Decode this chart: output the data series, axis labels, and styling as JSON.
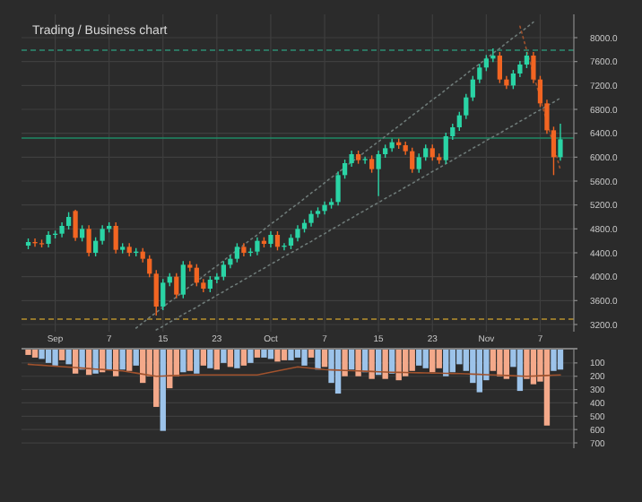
{
  "chart_data": [
    {
      "type": "candlestick",
      "title": "Trading / Business chart",
      "categories": [
        null,
        null,
        null,
        null,
        "Sep",
        null,
        null,
        null,
        null,
        null,
        null,
        null,
        "7",
        null,
        null,
        null,
        null,
        null,
        null,
        null,
        "15",
        null,
        null,
        null,
        null,
        null,
        null,
        null,
        "23",
        null,
        null,
        null,
        null,
        null,
        null,
        null,
        "Oct",
        null,
        null,
        null,
        null,
        null,
        null,
        null,
        "7",
        null,
        null,
        null,
        null,
        null,
        null,
        null,
        "15",
        null,
        null,
        null,
        null,
        null,
        null,
        null,
        "23",
        null,
        null,
        null,
        null,
        null,
        null,
        null,
        "Nov",
        null,
        null,
        null,
        null,
        null,
        null,
        null,
        "7",
        null,
        null,
        null
      ],
      "ohlc": [
        [
          4520,
          4640,
          4460,
          4580
        ],
        [
          4580,
          4640,
          4500,
          4560
        ],
        [
          4560,
          4620,
          4490,
          4550
        ],
        [
          4550,
          4760,
          4490,
          4700
        ],
        [
          4700,
          4770,
          4640,
          4720
        ],
        [
          4720,
          4910,
          4660,
          4850
        ],
        [
          4850,
          5080,
          4790,
          5000
        ],
        [
          5100,
          5120,
          4600,
          4650
        ],
        [
          4650,
          4860,
          4590,
          4800
        ],
        [
          4800,
          4860,
          4340,
          4400
        ],
        [
          4400,
          4660,
          4340,
          4600
        ],
        [
          4600,
          4860,
          4540,
          4800
        ],
        [
          4800,
          4910,
          4740,
          4850
        ],
        [
          4850,
          4910,
          4390,
          4450
        ],
        [
          4450,
          4560,
          4390,
          4500
        ],
        [
          4500,
          4560,
          4340,
          4400
        ],
        [
          4400,
          4480,
          4340,
          4420
        ],
        [
          4420,
          4480,
          4240,
          4300
        ],
        [
          4300,
          4360,
          3990,
          4050
        ],
        [
          4050,
          4110,
          3350,
          3500
        ],
        [
          3500,
          3960,
          3440,
          3900
        ],
        [
          3900,
          4060,
          3840,
          4000
        ],
        [
          4000,
          4060,
          3640,
          3700
        ],
        [
          3700,
          4260,
          3640,
          4200
        ],
        [
          4200,
          4260,
          4090,
          4150
        ],
        [
          4150,
          4210,
          3840,
          3900
        ],
        [
          3900,
          3960,
          3740,
          3800
        ],
        [
          3800,
          4010,
          3740,
          3950
        ],
        [
          3950,
          4060,
          3890,
          4000
        ],
        [
          4000,
          4260,
          3940,
          4200
        ],
        [
          4200,
          4360,
          4140,
          4300
        ],
        [
          4300,
          4560,
          4240,
          4500
        ],
        [
          4500,
          4560,
          4340,
          4400
        ],
        [
          4400,
          4480,
          4340,
          4420
        ],
        [
          4420,
          4660,
          4360,
          4600
        ],
        [
          4600,
          4660,
          4490,
          4550
        ],
        [
          4550,
          4760,
          4490,
          4700
        ],
        [
          4700,
          4760,
          4440,
          4500
        ],
        [
          4500,
          4560,
          4440,
          4520
        ],
        [
          4520,
          4710,
          4460,
          4650
        ],
        [
          4650,
          4860,
          4590,
          4800
        ],
        [
          4800,
          4960,
          4740,
          4900
        ],
        [
          4900,
          5110,
          4840,
          5050
        ],
        [
          5050,
          5160,
          4990,
          5100
        ],
        [
          5100,
          5260,
          5040,
          5200
        ],
        [
          5200,
          5310,
          5140,
          5250
        ],
        [
          5250,
          5760,
          5190,
          5700
        ],
        [
          5700,
          5960,
          5640,
          5900
        ],
        [
          5900,
          6110,
          5840,
          6050
        ],
        [
          6050,
          6110,
          5890,
          5950
        ],
        [
          5950,
          6010,
          5890,
          5970
        ],
        [
          5970,
          6030,
          5740,
          5800
        ],
        [
          5800,
          6110,
          5350,
          6050
        ],
        [
          6050,
          6210,
          5990,
          6150
        ],
        [
          6150,
          6310,
          6090,
          6250
        ],
        [
          6250,
          6310,
          6140,
          6200
        ],
        [
          6200,
          6260,
          6040,
          6100
        ],
        [
          6100,
          6160,
          5740,
          5800
        ],
        [
          5800,
          6060,
          5740,
          6000
        ],
        [
          6000,
          6210,
          5940,
          6150
        ],
        [
          6150,
          6210,
          5940,
          6000
        ],
        [
          6000,
          6060,
          5890,
          5950
        ],
        [
          5950,
          6410,
          5890,
          6350
        ],
        [
          6350,
          6560,
          6290,
          6500
        ],
        [
          6500,
          6760,
          6440,
          6700
        ],
        [
          6700,
          7060,
          6640,
          7000
        ],
        [
          7000,
          7360,
          6940,
          7300
        ],
        [
          7300,
          7560,
          7240,
          7500
        ],
        [
          7500,
          7710,
          7440,
          7650
        ],
        [
          7650,
          7820,
          7590,
          7700
        ],
        [
          7700,
          7760,
          7240,
          7300
        ],
        [
          7300,
          7360,
          7140,
          7200
        ],
        [
          7200,
          7460,
          7140,
          7400
        ],
        [
          7400,
          7610,
          7340,
          7550
        ],
        [
          7550,
          7760,
          7490,
          7700
        ],
        [
          7700,
          7760,
          7240,
          7300
        ],
        [
          7300,
          7360,
          6840,
          6900
        ],
        [
          6900,
          6960,
          6390,
          6450
        ],
        [
          6450,
          6510,
          5700,
          6000
        ],
        [
          6000,
          6560,
          5940,
          6300
        ]
      ],
      "series": [
        {
          "type": "line",
          "color": "#6e7a78",
          "line_style": "dotted",
          "values": [
            null,
            null,
            null,
            null,
            null,
            null,
            null,
            null,
            null,
            null,
            null,
            null,
            null,
            null,
            null,
            null,
            3140,
            3230,
            3320,
            3400,
            3490,
            3580,
            3660,
            3750,
            3840,
            3920,
            4010,
            4100,
            4180,
            4270,
            4360,
            4440,
            4530,
            4620,
            4700,
            4790,
            4880,
            4960,
            5050,
            5140,
            5220,
            5310,
            5400,
            5480,
            5570,
            5660,
            5740,
            5830,
            5920,
            6000,
            6090,
            6180,
            6260,
            6350,
            6440,
            6520,
            6610,
            6700,
            6780,
            6870,
            6960,
            7040,
            7130,
            7220,
            7300,
            7390,
            7480,
            7560,
            7650,
            7740,
            7820,
            7910,
            8000,
            8080,
            8170,
            8260,
            null,
            null,
            null,
            null
          ]
        },
        {
          "type": "line",
          "color": "#6e7a78",
          "line_style": "dotted",
          "values": [
            null,
            null,
            null,
            null,
            null,
            null,
            null,
            null,
            null,
            null,
            null,
            null,
            null,
            null,
            null,
            null,
            null,
            null,
            null,
            3110,
            3170,
            3240,
            3300,
            3370,
            3430,
            3490,
            3560,
            3620,
            3690,
            3750,
            3820,
            3880,
            3950,
            4010,
            4080,
            4140,
            4210,
            4270,
            4340,
            4400,
            4460,
            4530,
            4590,
            4660,
            4720,
            4790,
            4850,
            4920,
            4980,
            5050,
            5110,
            5180,
            5240,
            5310,
            5370,
            5430,
            5500,
            5560,
            5630,
            5690,
            5760,
            5820,
            5890,
            5950,
            6020,
            6080,
            6150,
            6210,
            6280,
            6340,
            6400,
            6470,
            6530,
            6600,
            6660,
            6730,
            6790,
            6860,
            6920,
            6990
          ]
        },
        {
          "type": "line",
          "color": "#a0522d",
          "line_style": "dotted",
          "values": [
            null,
            null,
            null,
            null,
            null,
            null,
            null,
            null,
            null,
            null,
            null,
            null,
            null,
            null,
            null,
            null,
            null,
            null,
            null,
            null,
            null,
            null,
            null,
            null,
            null,
            null,
            null,
            null,
            null,
            null,
            null,
            null,
            null,
            null,
            null,
            null,
            null,
            null,
            null,
            null,
            null,
            null,
            null,
            null,
            null,
            null,
            null,
            null,
            null,
            null,
            null,
            null,
            null,
            null,
            null,
            null,
            null,
            null,
            null,
            null,
            null,
            null,
            null,
            null,
            null,
            null,
            null,
            null,
            null,
            null,
            null,
            null,
            null,
            8190,
            7790,
            7390,
            6990,
            6590,
            6190,
            5790
          ]
        }
      ],
      "ref_lines": [
        {
          "axis": "y",
          "value": 7790,
          "color": "#2e8f74",
          "line_style": "dashed"
        },
        {
          "axis": "y",
          "value": 6320,
          "color": "#1f8a66",
          "line_style": "solid"
        },
        {
          "axis": "y",
          "value": 3290,
          "color": "#b8912e",
          "line_style": "dashed"
        }
      ],
      "ylim": [
        3080,
        8390
      ],
      "yticks": [
        {
          "value": 3200,
          "label": "3200.0"
        },
        {
          "value": 3600,
          "label": "3600.0"
        },
        {
          "value": 4000,
          "label": "4000.0"
        },
        {
          "value": 4400,
          "label": "4400.0"
        },
        {
          "value": 4800,
          "label": "4800.0"
        },
        {
          "value": 5200,
          "label": "5200.0"
        },
        {
          "value": 5600,
          "label": "5600.0"
        },
        {
          "value": 6000,
          "label": "6000.0"
        },
        {
          "value": 6400,
          "label": "6400.0"
        },
        {
          "value": 6800,
          "label": "6800.0"
        },
        {
          "value": 7200,
          "label": "7200.0"
        },
        {
          "value": 7600,
          "label": "7600.0"
        },
        {
          "value": 8000,
          "label": "8000.0"
        }
      ],
      "grid": true
    },
    {
      "type": "bar",
      "categories": [
        null,
        null,
        null,
        null,
        null,
        null,
        null,
        null,
        null,
        null,
        null,
        null,
        null,
        null,
        null,
        null,
        null,
        null,
        null,
        null,
        null,
        null,
        null,
        null,
        null,
        null,
        null,
        null,
        null,
        null,
        null,
        null,
        null,
        null,
        null,
        null,
        null,
        null,
        null,
        null,
        null,
        null,
        null,
        null,
        null,
        null,
        null,
        null,
        null,
        null,
        null,
        null,
        null,
        null,
        null,
        null,
        null,
        null,
        null,
        null,
        null,
        null,
        null,
        null,
        null,
        null,
        null,
        null,
        null,
        null,
        null,
        null,
        null,
        null,
        null,
        null,
        null,
        null,
        null,
        null
      ],
      "values": [
        40,
        60,
        70,
        100,
        120,
        80,
        110,
        180,
        150,
        190,
        180,
        170,
        150,
        200,
        150,
        160,
        120,
        250,
        200,
        430,
        610,
        290,
        200,
        170,
        160,
        180,
        120,
        140,
        150,
        100,
        130,
        140,
        120,
        100,
        60,
        60,
        70,
        90,
        80,
        80,
        60,
        120,
        60,
        150,
        130,
        250,
        330,
        200,
        150,
        200,
        170,
        220,
        190,
        220,
        180,
        230,
        200,
        160,
        120,
        140,
        170,
        140,
        200,
        170,
        110,
        160,
        250,
        320,
        230,
        160,
        200,
        220,
        130,
        310,
        220,
        260,
        240,
        570,
        160,
        150
      ],
      "colors": [
        "#f4a98a",
        "#f4a98a",
        "#9cc3ea",
        "#9cc3ea",
        "#9cc3ea",
        "#f4a98a",
        "#9cc3ea",
        "#f4a98a",
        "#9cc3ea",
        "#f4a98a",
        "#9cc3ea",
        "#f4a98a",
        "#9cc3ea",
        "#f4a98a",
        "#9cc3ea",
        "#f4a98a",
        "#9cc3ea",
        "#f4a98a",
        "#f4a98a",
        "#f4a98a",
        "#9cc3ea",
        "#f4a98a",
        "#f4a98a",
        "#9cc3ea",
        "#f4a98a",
        "#9cc3ea",
        "#f4a98a",
        "#9cc3ea",
        "#f4a98a",
        "#9cc3ea",
        "#f4a98a",
        "#9cc3ea",
        "#f4a98a",
        "#9cc3ea",
        "#f4a98a",
        "#9cc3ea",
        "#9cc3ea",
        "#f4a98a",
        "#f4a98a",
        "#9cc3ea",
        "#9cc3ea",
        "#9cc3ea",
        "#f4a98a",
        "#9cc3ea",
        "#f4a98a",
        "#9cc3ea",
        "#9cc3ea",
        "#f4a98a",
        "#9cc3ea",
        "#f4a98a",
        "#9cc3ea",
        "#f4a98a",
        "#9cc3ea",
        "#f4a98a",
        "#9cc3ea",
        "#f4a98a",
        "#f4a98a",
        "#f4a98a",
        "#9cc3ea",
        "#9cc3ea",
        "#f4a98a",
        "#f4a98a",
        "#9cc3ea",
        "#9cc3ea",
        "#9cc3ea",
        "#9cc3ea",
        "#9cc3ea",
        "#9cc3ea",
        "#9cc3ea",
        "#f4a98a",
        "#f4a98a",
        "#f4a98a",
        "#9cc3ea",
        "#9cc3ea",
        "#f4a98a",
        "#f4a98a",
        "#f4a98a",
        "#f4a98a",
        "#9cc3ea",
        "#9cc3ea"
      ],
      "series": [
        {
          "type": "line",
          "color": "#a0522d",
          "values": [
            110,
            114,
            117,
            121,
            124,
            128,
            131,
            135,
            139,
            142,
            146,
            149,
            153,
            156,
            160,
            168,
            176,
            184,
            192,
            200,
            198,
            196,
            194,
            192,
            190,
            190,
            190,
            190,
            190,
            190,
            190,
            190,
            190,
            190,
            190,
            180,
            170,
            160,
            150,
            140,
            130,
            135,
            140,
            145,
            150,
            152,
            154,
            156,
            158,
            160,
            162,
            164,
            166,
            168,
            170,
            171,
            172,
            173,
            174,
            175,
            176,
            177,
            178,
            179,
            180,
            182,
            184,
            186,
            188,
            190,
            192,
            194,
            196,
            198,
            200,
            198,
            196,
            194,
            192,
            190
          ]
        }
      ],
      "ylim": [
        740,
        0
      ],
      "yticks": [
        100,
        200,
        300,
        400,
        500,
        600,
        700
      ],
      "tick_labels": "y",
      "grid": "y"
    }
  ]
}
